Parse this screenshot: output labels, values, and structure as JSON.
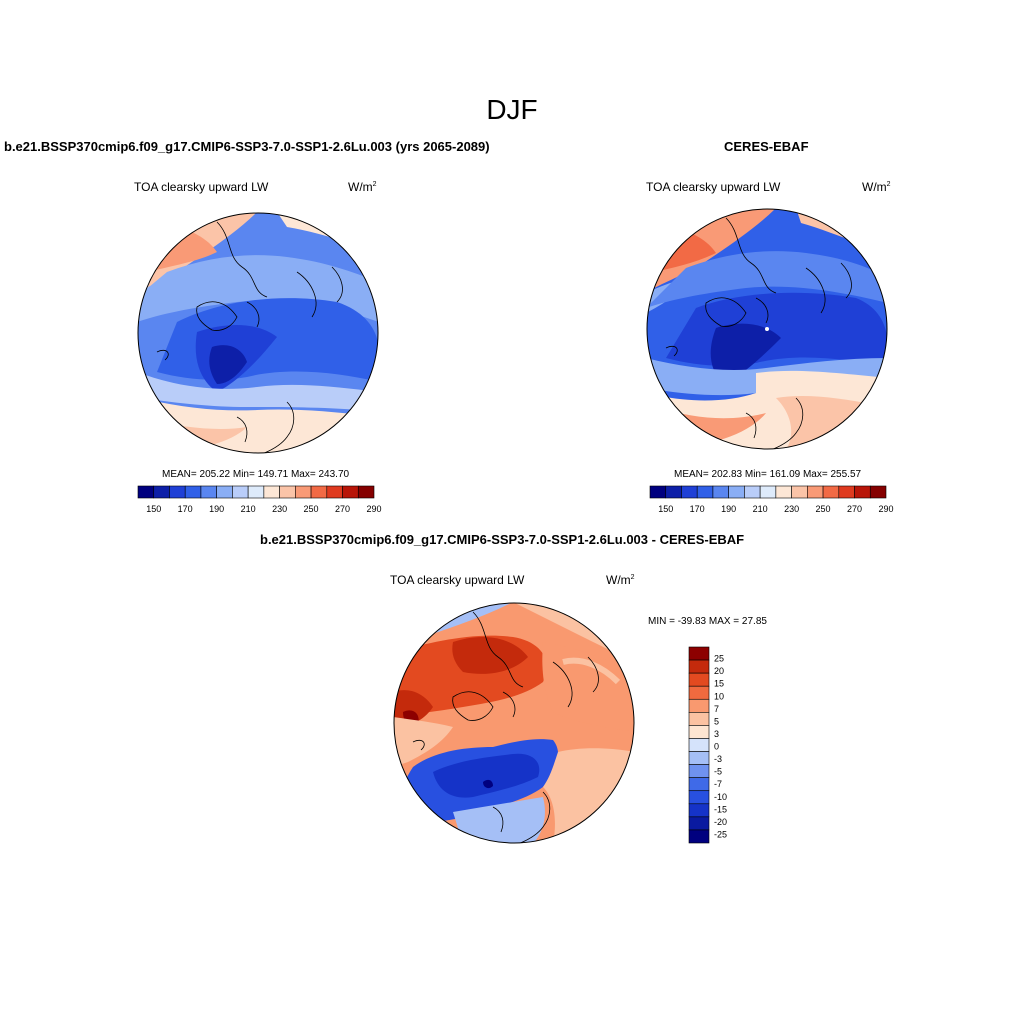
{
  "figure": {
    "season_title": "DJF"
  },
  "panels": [
    {
      "title": "b.e21.BSSP370cmip6.f09_g17.CMIP6-SSP3-7.0-SSP1-2.6Lu.003 (yrs 2065-2089)",
      "variable": "TOA clearsky upward LW",
      "units_base": "W/m",
      "units_exp": "2",
      "stats": "MEAN= 205.22  Min= 149.71  Max= 243.70"
    },
    {
      "title": "CERES-EBAF",
      "variable": "TOA clearsky upward LW",
      "units_base": "W/m",
      "units_exp": "2",
      "stats": "MEAN= 202.83  Min= 161.09  Max= 255.57"
    },
    {
      "title": "b.e21.BSSP370cmip6.f09_g17.CMIP6-SSP3-7.0-SSP1-2.6Lu.003 - CERES-EBAF",
      "variable": "TOA clearsky upward LW",
      "units_base": "W/m",
      "units_exp": "2",
      "stats": "MIN = -39.83 MAX =  27.85"
    }
  ],
  "colorbar_abs": {
    "colors": [
      "#00007f",
      "#0d1fa8",
      "#1f40d6",
      "#3060e8",
      "#5a86f0",
      "#8aaef5",
      "#b9cdf9",
      "#deebfb",
      "#fde7d6",
      "#fbc4a8",
      "#f99a76",
      "#f26a45",
      "#df3a1f",
      "#b81508",
      "#850000"
    ],
    "ticks": [
      "150",
      "170",
      "190",
      "210",
      "230",
      "250",
      "270",
      "290"
    ]
  },
  "colorbar_diff": {
    "colors": [
      "#00007f",
      "#0a1aa0",
      "#1533c8",
      "#2850e0",
      "#3f6ae8",
      "#6f92ef",
      "#a5bff6",
      "#d5e3fb",
      "#fde5d2",
      "#fbc2a2",
      "#f9996f",
      "#f06a3f",
      "#e34a20",
      "#c42a0c",
      "#8d0000"
    ],
    "ticks": [
      "25",
      "20",
      "15",
      "10",
      "7",
      "5",
      "3",
      "0",
      "-3",
      "-5",
      "-7",
      "-10",
      "-15",
      "-20",
      "-25"
    ]
  }
}
